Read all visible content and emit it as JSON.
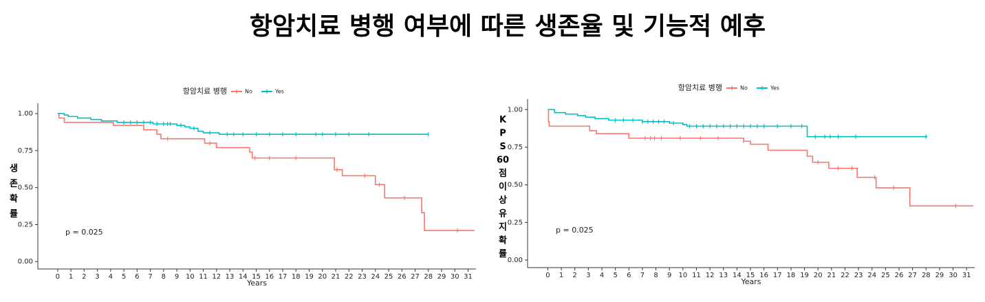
{
  "title": "항암치료 병행 여부에 따른 생존율 및 기능적 예후",
  "chart_data": [
    {
      "type": "km",
      "legend_title": "항암치료 병행",
      "x_label": "Years",
      "y_label": "생존 확률",
      "annotation": "p = 0.025",
      "xlim": [
        -1.5,
        31.6
      ],
      "ylim": [
        -0.05,
        1.07
      ],
      "xticks": [
        0,
        1,
        2,
        3,
        4,
        5,
        6,
        7,
        8,
        9,
        10,
        11,
        12,
        13,
        14,
        15,
        16,
        17,
        18,
        19,
        20,
        21,
        22,
        23,
        24,
        25,
        26,
        27,
        28,
        29,
        30,
        31
      ],
      "yticks": [
        {
          "value": 0,
          "label": "0.00"
        },
        {
          "value": 0.25,
          "label": "0.25"
        },
        {
          "value": 0.5,
          "label": "0.50"
        },
        {
          "value": 0.75,
          "label": "0.75"
        },
        {
          "value": 1,
          "label": "1.00"
        }
      ],
      "series": [
        {
          "name": "No",
          "color": "#f8766d",
          "x": [
            0,
            0.1,
            0.5,
            4.2,
            6.5,
            7.5,
            7.8,
            11.1,
            12,
            14.5,
            14.7,
            20.9,
            21.5,
            24,
            24.7,
            27.5,
            27.7,
            31.5
          ],
          "values": [
            1.0,
            0.97,
            0.94,
            0.92,
            0.89,
            0.86,
            0.83,
            0.8,
            0.77,
            0.74,
            0.7,
            0.62,
            0.58,
            0.52,
            0.43,
            0.33,
            0.21,
            0.21
          ],
          "censored": [
            8.3,
            11.5,
            14.9,
            16,
            18,
            21.1,
            23.2,
            24.3,
            26.2,
            30.2
          ]
        },
        {
          "name": "Yes",
          "color": "#00bfc4",
          "x": [
            0,
            0.5,
            0.8,
            1.5,
            2.5,
            3.3,
            4.5,
            7.2,
            9.0,
            9.6,
            10,
            10.6,
            11,
            12.2,
            28
          ],
          "values": [
            1.0,
            0.99,
            0.98,
            0.97,
            0.96,
            0.95,
            0.94,
            0.93,
            0.92,
            0.91,
            0.9,
            0.88,
            0.87,
            0.86,
            0.86
          ],
          "censored": [
            5,
            5.5,
            6,
            6.5,
            7,
            7.5,
            8,
            8.3,
            8.5,
            9.3,
            10.3,
            11.5,
            12.8,
            13.3,
            14,
            15,
            16,
            17,
            18,
            19.5,
            20,
            21,
            22,
            23.5,
            28
          ]
        }
      ]
    },
    {
      "type": "km",
      "legend_title": "항암치료 병행",
      "x_label": "Years",
      "y_label": "KPS 60점 이상 유지확률",
      "annotation": "p = 0.025",
      "xlim": [
        -1.5,
        31.6
      ],
      "ylim": [
        -0.05,
        1.07
      ],
      "xticks": [
        0,
        1,
        2,
        3,
        4,
        5,
        6,
        7,
        8,
        9,
        10,
        11,
        12,
        13,
        14,
        15,
        16,
        17,
        18,
        19,
        20,
        21,
        22,
        23,
        24,
        25,
        26,
        27,
        28,
        29,
        30,
        31
      ],
      "yticks": [
        {
          "value": 0,
          "label": "0.00"
        },
        {
          "value": 0.25,
          "label": "0.25"
        },
        {
          "value": 0.5,
          "label": "0.50"
        },
        {
          "value": 0.75,
          "label": "0.75"
        },
        {
          "value": 1,
          "label": "1.00"
        }
      ],
      "series": [
        {
          "name": "No",
          "color": "#f8766d",
          "x": [
            0,
            0.05,
            0.1,
            3.1,
            3.6,
            6,
            14.5,
            15,
            16.3,
            19.2,
            19.6,
            20.8,
            22.9,
            24.3,
            26.8,
            31.5
          ],
          "values": [
            1.0,
            0.92,
            0.89,
            0.86,
            0.84,
            0.81,
            0.79,
            0.77,
            0.73,
            0.69,
            0.65,
            0.61,
            0.55,
            0.48,
            0.36,
            0.36
          ],
          "censored": [
            7.2,
            7.6,
            7.9,
            8.4,
            9.8,
            11.3,
            12.6,
            14.5,
            20,
            21.5,
            22.5,
            24.2,
            25.6,
            30.2
          ]
        },
        {
          "name": "Yes",
          "color": "#00bfc4",
          "x": [
            0,
            0.5,
            1.3,
            2.2,
            2.8,
            3.5,
            4.5,
            7,
            9,
            10,
            10.3,
            19.2,
            28.1
          ],
          "values": [
            1.0,
            0.98,
            0.97,
            0.96,
            0.95,
            0.94,
            0.93,
            0.92,
            0.91,
            0.9,
            0.89,
            0.82,
            0.82
          ],
          "censored": [
            5,
            5.6,
            6.3,
            7,
            7.4,
            7.8,
            8.2,
            8.6,
            9.3,
            10.5,
            11,
            11.5,
            12,
            12.5,
            13,
            13.5,
            14,
            14.5,
            15,
            15.5,
            16,
            17,
            18,
            18.8,
            19.8,
            20.5,
            20.9,
            21.5,
            22.8,
            28
          ]
        }
      ]
    }
  ]
}
